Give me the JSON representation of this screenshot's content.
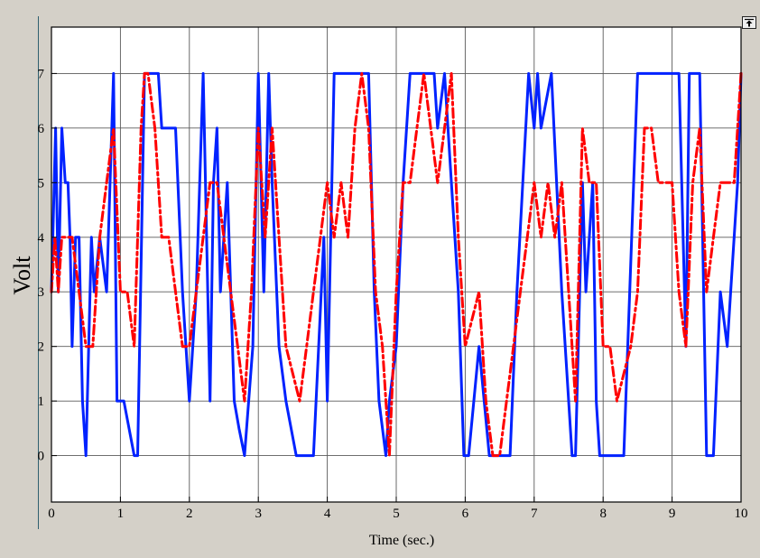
{
  "ui": {
    "icon": "undock-arrow-icon"
  },
  "chart_data": {
    "type": "line",
    "xlabel": "Time (sec.)",
    "ylabel": "Volt",
    "xlim": [
      0,
      10
    ],
    "ylim": [
      -0.85,
      7.85
    ],
    "x_ticks": [
      0,
      1,
      2,
      3,
      4,
      5,
      6,
      7,
      8,
      9,
      10
    ],
    "y_ticks": [
      0,
      1,
      2,
      3,
      4,
      5,
      6,
      7
    ],
    "grid": true,
    "background": "#ffffff",
    "series": [
      {
        "color": "#0022ff",
        "style": "solid",
        "x": [
          0,
          0.06,
          0.1,
          0.15,
          0.2,
          0.24,
          0.27,
          0.3,
          0.35,
          0.4,
          0.45,
          0.5,
          0.58,
          0.62,
          0.7,
          0.8,
          0.9,
          0.95,
          1.05,
          1.2,
          1.25,
          1.35,
          1.45,
          1.55,
          1.6,
          1.65,
          1.8,
          1.9,
          2.0,
          2.1,
          2.2,
          2.3,
          2.35,
          2.4,
          2.45,
          2.55,
          2.65,
          2.72,
          2.8,
          2.92,
          3.0,
          3.08,
          3.15,
          3.2,
          3.3,
          3.4,
          3.55,
          3.75,
          3.8,
          3.95,
          4.0,
          4.1,
          4.15,
          4.3,
          4.5,
          4.6,
          4.68,
          4.75,
          4.85,
          4.9,
          5.0,
          5.1,
          5.2,
          5.3,
          5.4,
          5.55,
          5.6,
          5.7,
          5.8,
          5.9,
          5.98,
          6.05,
          6.2,
          6.35,
          6.5,
          6.6,
          6.65,
          6.75,
          6.92,
          7.0,
          7.05,
          7.1,
          7.25,
          7.4,
          7.55,
          7.6,
          7.7,
          7.75,
          7.8,
          7.85,
          7.9,
          7.95,
          8.0,
          8.05,
          8.2,
          8.3,
          8.5,
          8.6,
          8.8,
          8.9,
          9.0,
          9.1,
          9.2,
          9.25,
          9.35,
          9.4,
          9.5,
          9.55,
          9.6,
          9.7,
          9.8,
          9.85,
          9.95,
          10.0
        ],
        "y": [
          3,
          6,
          3,
          6,
          5,
          5,
          4,
          2,
          4,
          4,
          1,
          0,
          4,
          3,
          4,
          3,
          7,
          1,
          1,
          0,
          0,
          7,
          7,
          7,
          6,
          6,
          6,
          3,
          1,
          3,
          7,
          1,
          5,
          6,
          3,
          5,
          1,
          0.5,
          0,
          2,
          7,
          3,
          7,
          5,
          2,
          1,
          0,
          0,
          0,
          4,
          1,
          7,
          7,
          7,
          7,
          7,
          3,
          1,
          0,
          1,
          2,
          5,
          7,
          7,
          7,
          7,
          6,
          7,
          5,
          3,
          0,
          0,
          2,
          0,
          0,
          0,
          0,
          3,
          7,
          6,
          7,
          6,
          7,
          3,
          0,
          0,
          5,
          3,
          4,
          5,
          1,
          0,
          0,
          0,
          0,
          0,
          7,
          7,
          7,
          7,
          7,
          7,
          2,
          7,
          7,
          7,
          0,
          0,
          0,
          3,
          2,
          3,
          5,
          7
        ]
      },
      {
        "color": "#ff0000",
        "style": "dashdot",
        "x": [
          0,
          0.05,
          0.1,
          0.15,
          0.2,
          0.25,
          0.3,
          0.4,
          0.5,
          0.6,
          0.7,
          0.8,
          0.9,
          1.0,
          1.1,
          1.2,
          1.3,
          1.35,
          1.4,
          1.5,
          1.6,
          1.7,
          1.8,
          1.9,
          2.0,
          2.1,
          2.2,
          2.3,
          2.4,
          2.5,
          2.6,
          2.7,
          2.8,
          2.9,
          3.0,
          3.1,
          3.2,
          3.3,
          3.4,
          3.5,
          3.6,
          3.7,
          3.8,
          3.9,
          4.0,
          4.1,
          4.2,
          4.3,
          4.4,
          4.5,
          4.6,
          4.7,
          4.8,
          4.9,
          5.0,
          5.1,
          5.2,
          5.3,
          5.4,
          5.5,
          5.6,
          5.7,
          5.8,
          5.9,
          6.0,
          6.1,
          6.2,
          6.3,
          6.4,
          6.5,
          6.6,
          6.7,
          6.8,
          6.9,
          7.0,
          7.1,
          7.2,
          7.3,
          7.4,
          7.5,
          7.6,
          7.7,
          7.8,
          7.9,
          8.0,
          8.1,
          8.2,
          8.3,
          8.4,
          8.5,
          8.6,
          8.7,
          8.8,
          8.9,
          9.0,
          9.1,
          9.2,
          9.3,
          9.4,
          9.5,
          9.6,
          9.7,
          9.8,
          9.9,
          10.0
        ],
        "y": [
          3,
          4,
          3,
          4,
          4,
          4,
          4,
          3,
          2,
          2,
          4,
          5,
          6,
          3,
          3,
          2,
          6,
          7,
          7,
          6,
          4,
          4,
          3,
          2,
          2,
          3,
          4,
          5,
          5,
          4,
          3,
          2,
          1,
          3,
          6,
          4,
          6,
          4,
          2,
          1.5,
          1,
          2,
          3,
          4,
          5,
          4,
          5,
          4,
          6,
          7,
          6,
          3,
          2,
          0,
          3,
          5,
          5,
          6,
          7,
          6,
          5,
          6,
          7,
          4,
          2,
          2.5,
          3,
          1,
          0,
          0,
          1,
          2,
          3,
          4,
          5,
          4,
          5,
          4,
          5,
          3,
          1,
          6,
          5,
          5,
          2,
          2,
          1,
          1.5,
          2,
          3,
          6,
          6,
          5,
          5,
          5,
          3,
          2,
          5,
          6,
          3,
          4,
          5,
          5,
          5,
          7
        ]
      }
    ]
  }
}
